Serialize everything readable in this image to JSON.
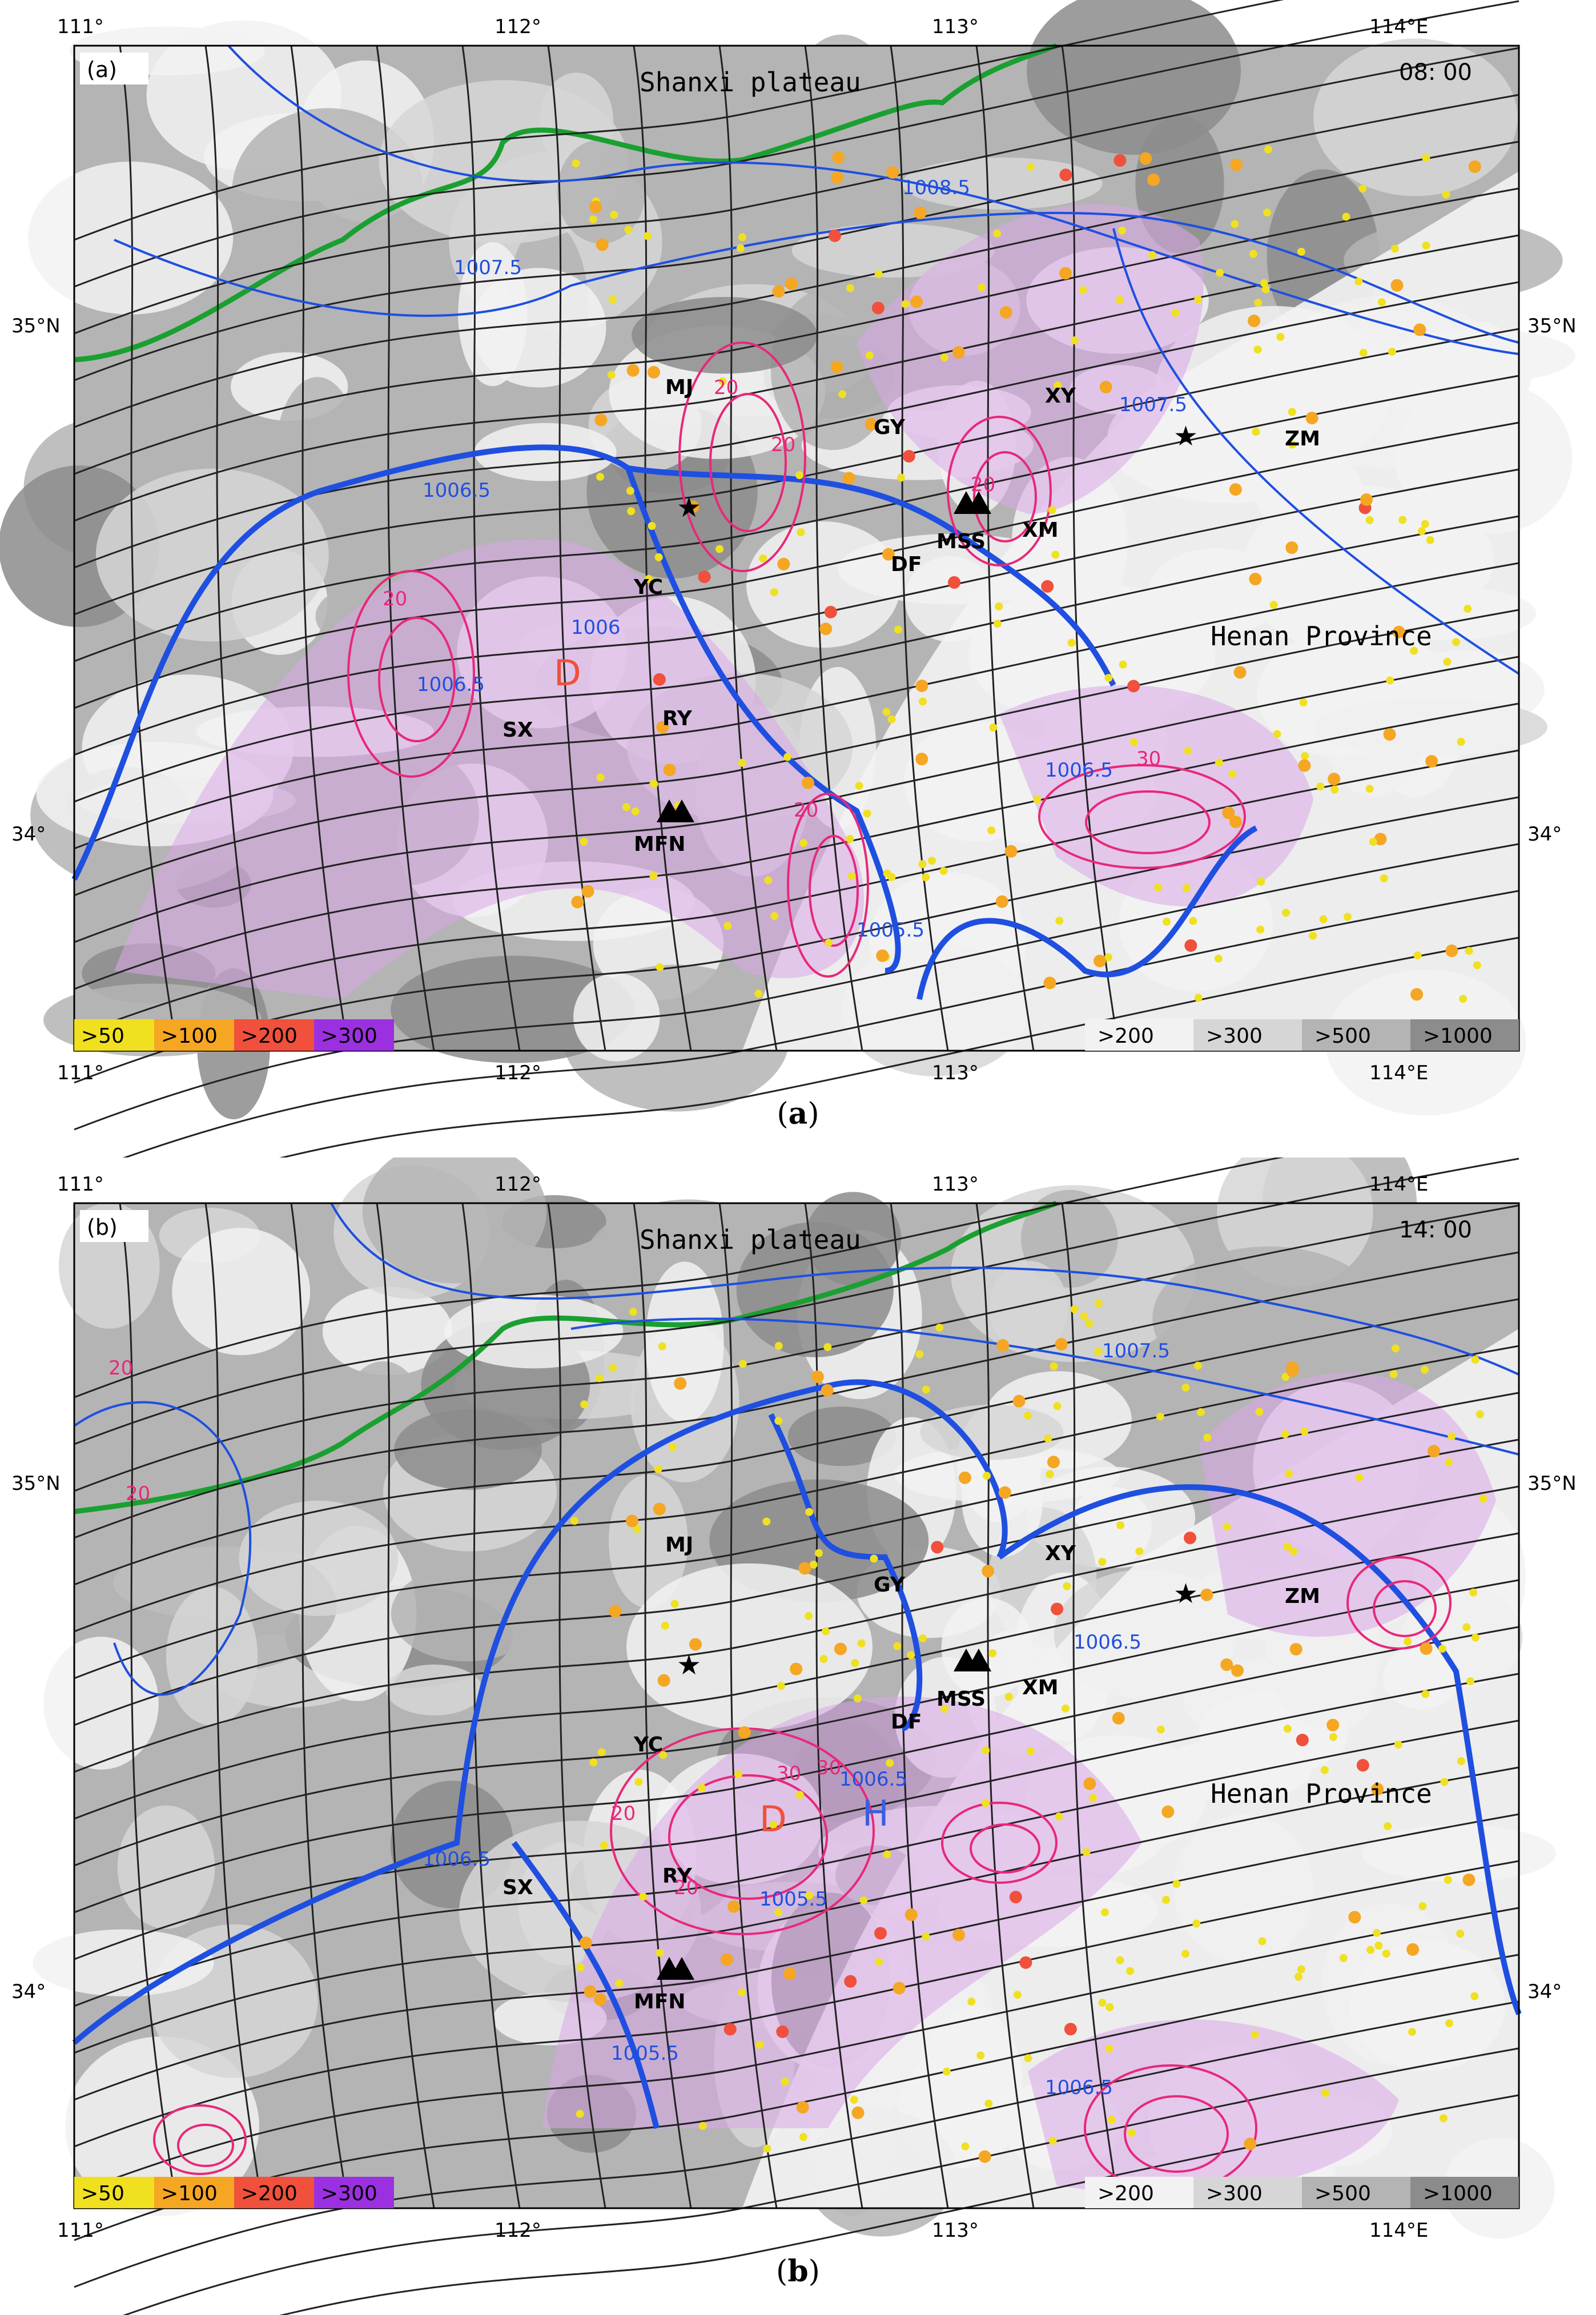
{
  "lon_ticks": [
    "111°",
    "112°",
    "113°",
    "114°E"
  ],
  "lat_ticks": [
    "35°N",
    "34°"
  ],
  "panels": [
    {
      "id": "a",
      "tag": "(a)",
      "time": "08: 00",
      "caption_letter": "a",
      "region_labels": {
        "plateau": "Shanxi plateau",
        "province": "Henan Province"
      },
      "stations": [
        "MJ",
        "GY",
        "XY",
        "ZM",
        "YC",
        "DF",
        "XM",
        "SX",
        "RY",
        "MFN",
        "MSS"
      ],
      "centers": [
        {
          "text": "D",
          "color": "#f0503c"
        }
      ],
      "isobar_labels": [
        "1008.5",
        "1007.5",
        "1006.5",
        "1006.5",
        "1006.5",
        "1005.5",
        "1007.5",
        "1006"
      ],
      "contour_labels": [
        "20",
        "20",
        "20",
        "20",
        "20",
        "30"
      ],
      "legend_precip": [
        ">50",
        ">100",
        ">200",
        ">300"
      ],
      "legend_elev": [
        ">200",
        ">300",
        ">500",
        ">1000"
      ]
    },
    {
      "id": "b",
      "tag": "(b)",
      "time": "14: 00",
      "caption_letter": "b",
      "region_labels": {
        "plateau": "Shanxi plateau",
        "province": "Henan Province"
      },
      "stations": [
        "MJ",
        "GY",
        "XY",
        "ZM",
        "YC",
        "DF",
        "XM",
        "SX",
        "RY",
        "MFN",
        "MSS"
      ],
      "centers": [
        {
          "text": "D",
          "color": "#f0503c"
        },
        {
          "text": "H",
          "color": "#3a5ee0"
        }
      ],
      "isobar_labels": [
        "1007.5",
        "1006.5",
        "1006.5",
        "1006.5",
        "1005.5",
        "1006.5",
        "1005.5"
      ],
      "contour_labels": [
        "20",
        "20",
        "20",
        "30",
        "30",
        "20"
      ],
      "legend_precip": [
        ">50",
        ">100",
        ">200",
        ">300"
      ],
      "legend_elev": [
        ">200",
        ">300",
        ">500",
        ">1000"
      ]
    }
  ],
  "colors": {
    "precip": [
      "#f0e020",
      "#f5a623",
      "#f0503c",
      "#9b30e0"
    ],
    "elev": [
      "#f2f2f2",
      "#d6d6d6",
      "#b4b4b4",
      "#8c8c8c"
    ],
    "isobar": "#1f4fe0",
    "contour": "#e8287a",
    "boundary": "#1aa030",
    "stream": "#222222",
    "convection": "#d8a8e8"
  }
}
